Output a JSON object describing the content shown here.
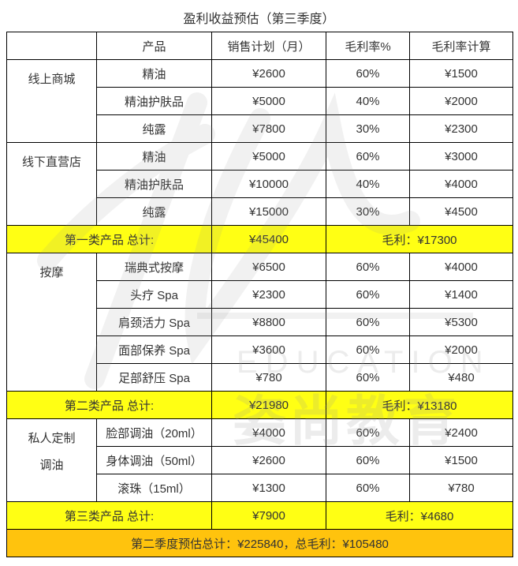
{
  "title": "盈利收益预估（第三季度）",
  "headers": [
    "",
    "产品",
    "销售计划（月）",
    "毛利率%",
    "毛利率计算"
  ],
  "colors": {
    "subtotal_bg": "#FFFF00",
    "grand_total_bg": "#FFC000",
    "border": "#000000",
    "text": "#333333"
  },
  "sections": [
    {
      "groups": [
        {
          "name": "线上商城",
          "rows": [
            {
              "product": "精油",
              "sales": "¥2600",
              "rate": "60%",
              "profit": "¥1500"
            },
            {
              "product": "精油护肤品",
              "sales": "¥5000",
              "rate": "40%",
              "profit": "¥2000"
            },
            {
              "product": "纯露",
              "sales": "¥7800",
              "rate": "30%",
              "profit": "¥2300"
            }
          ]
        },
        {
          "name": "线下直营店",
          "rows": [
            {
              "product": "精油",
              "sales": "¥5000",
              "rate": "60%",
              "profit": "¥3000"
            },
            {
              "product": "精油护肤品",
              "sales": "¥10000",
              "rate": "40%",
              "profit": "¥4000"
            },
            {
              "product": "纯露",
              "sales": "¥15000",
              "rate": "30%",
              "profit": "¥4500"
            }
          ]
        }
      ],
      "subtotal": {
        "label": "第一类产品  总计:",
        "sales": "¥45400",
        "profit": "毛利：¥17300"
      }
    },
    {
      "groups": [
        {
          "name": "按摩",
          "rows": [
            {
              "product": "瑞典式按摩",
              "sales": "¥6500",
              "rate": "60%",
              "profit": "¥4000"
            },
            {
              "product": "头疗 Spa",
              "sales": "¥2300",
              "rate": "60%",
              "profit": "¥1400"
            },
            {
              "product": "肩颈活力 Spa",
              "sales": "¥8800",
              "rate": "60%",
              "profit": "¥5300"
            },
            {
              "product": "面部保养 Spa",
              "sales": "¥3600",
              "rate": "60%",
              "profit": "¥2000"
            },
            {
              "product": "足部舒压 Spa",
              "sales": "¥780",
              "rate": "60%",
              "profit": "¥480"
            }
          ]
        }
      ],
      "subtotal": {
        "label": "第二类产品  总计:",
        "sales": "¥21980",
        "profit": "毛利：¥13180"
      }
    },
    {
      "groups": [
        {
          "name": "私人定制\n调油",
          "rows": [
            {
              "product": "脸部调油（20ml）",
              "sales": "¥4000",
              "rate": "60%",
              "profit": "¥2400"
            },
            {
              "product": "身体调油（50ml）",
              "sales": "¥2600",
              "rate": "60%",
              "profit": "¥1500"
            },
            {
              "product": "滚珠（15ml）",
              "sales": "¥1300",
              "rate": "60%",
              "profit": "¥780"
            }
          ]
        }
      ],
      "subtotal": {
        "label": "第三类产品  总计:",
        "sales": "¥7900",
        "profit": "毛利：¥4680"
      }
    }
  ],
  "grand_total": "第二季度预估总计：¥225840，总毛利：¥105480",
  "watermark": {
    "en": "EDUCATION",
    "cn": "姿尚教育"
  }
}
